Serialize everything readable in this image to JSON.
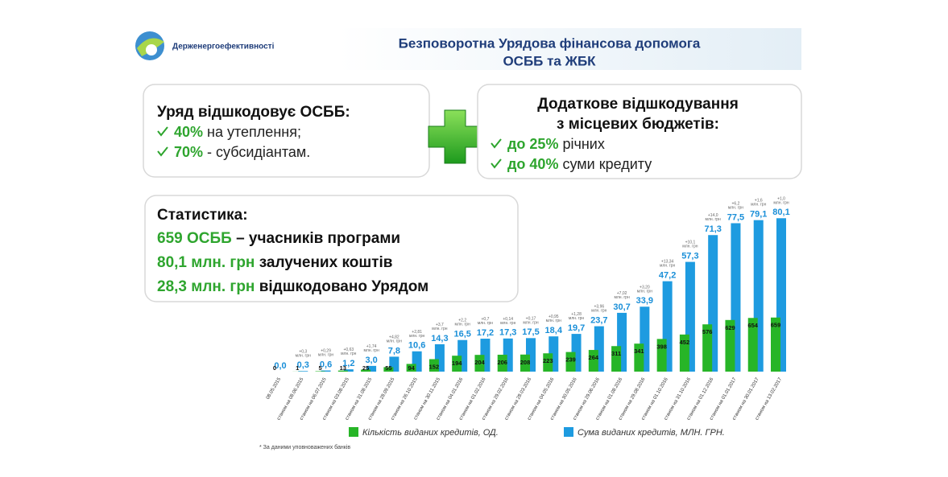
{
  "slide": {
    "logo": "Держенергоефективності",
    "title": [
      "Безповоротна Урядова фінансова допомога",
      "ОСББ та ЖБК"
    ],
    "left_box": {
      "heading": "Уряд відшкодовує ОСББ:",
      "items": [
        {
          "highlight": "40%",
          "text": "на утеплення;"
        },
        {
          "highlight": "70%",
          "text": "- субсидіантам."
        }
      ]
    },
    "right_box": {
      "heading": [
        "Додаткове відшкодування",
        "з місцевих бюджетів:"
      ],
      "items": [
        {
          "highlight": "до 25%",
          "text": "річних"
        },
        {
          "highlight": "до 40%",
          "text": "суми кредиту"
        }
      ]
    },
    "stats": {
      "heading": "Статистика:",
      "lines": [
        {
          "highlight": "659 ОСББ",
          "text": "– учасників програми"
        },
        {
          "highlight": "80,1 млн. грн",
          "text": "залучених коштів"
        },
        {
          "highlight": "28,3 млн. грн",
          "text": "відшкодовано Урядом"
        }
      ]
    },
    "footnote": "* За даними уповноважених банків"
  },
  "chart_data": {
    "type": "bar",
    "categories": [
      "08.05.2015",
      "станом на 08.06.2015",
      "станом на 06.07.2015",
      "станом на 03.08.2015",
      "станом на 31.08.2015",
      "станом на 28.09.2015",
      "станом на 26.10.2015",
      "станом на 30.11.2015",
      "станом на 04.01.2016",
      "станом на 01.02.2016",
      "станом на 29.02.2016",
      "станом на 28.03.2016",
      "станом на 04.05.2016",
      "станом на 30.05.2016",
      "станом на 29.06.2016",
      "станом на 01.08.2016",
      "станом на 29.08.2016",
      "станом на 01.10.2016",
      "станом на 31.10.2016",
      "станом на 01.12.2016",
      "станом на 01.01.2017",
      "станом на 30.01.2017",
      "станом на 13.02.2017"
    ],
    "series": [
      {
        "name": "Кількість виданих кредитів, ОД.",
        "color": "#27b527",
        "axis": "y2",
        "values": [
          0,
          1,
          5,
          13,
          25,
          55,
          94,
          152,
          194,
          204,
          206,
          208,
          223,
          239,
          264,
          311,
          341,
          398,
          452,
          576,
          629,
          654,
          659
        ]
      },
      {
        "name": "Сума виданих кредитів, МЛН. ГРН.",
        "color": "#1e9be0",
        "axis": "y",
        "values": [
          0.0,
          0.3,
          0.6,
          1.2,
          3.0,
          7.8,
          10.6,
          14.3,
          16.5,
          17.2,
          17.3,
          17.5,
          18.4,
          19.7,
          23.7,
          30.7,
          33.9,
          47.2,
          57.3,
          71.3,
          77.5,
          79.1,
          80.1
        ],
        "value_labels": [
          "0,0",
          "0,3",
          "0,6",
          "1,2",
          "3,0",
          "7,8",
          "10,6",
          "14,3",
          "16,5",
          "17,2",
          "17,3",
          "17,5",
          "18,4",
          "19,7",
          "23,7",
          "30,7",
          "33,9",
          "47,2",
          "57,3",
          "71,3",
          "77,5",
          "79,1",
          "80,1"
        ]
      }
    ],
    "increments": [
      null,
      "+0,3",
      "+0,29",
      "+0,63",
      "+1,74",
      "+4,82",
      "+2,81",
      "+3,7",
      "+2,2",
      "+0,7",
      "+0,14",
      "+0,17",
      "+0,95",
      "+1,28",
      "+3,96",
      "+7,02",
      "+3,20",
      "+13,34",
      "+10,1",
      "+14,0",
      "+6,2",
      "+1,6",
      "+1,0"
    ],
    "increment_unit": "млн. грн",
    "ylim": [
      0,
      84
    ],
    "y2lim": [
      0,
      1960
    ]
  }
}
